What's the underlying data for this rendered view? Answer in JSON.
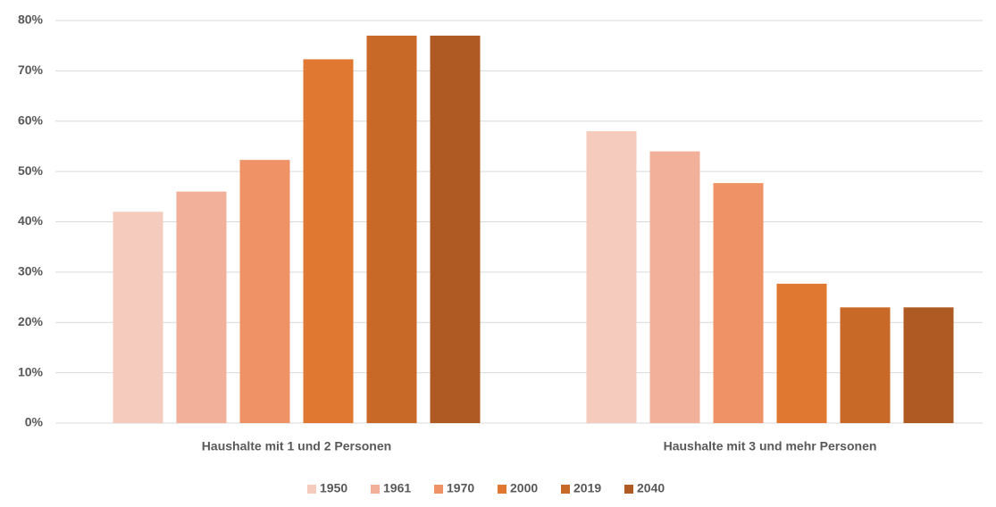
{
  "chart_data": {
    "type": "bar",
    "categories": [
      "Haushalte mit 1 und 2 Personen",
      "Haushalte mit 3 und mehr Personen"
    ],
    "series": [
      {
        "name": "1950",
        "color": "#f5cbbd",
        "values": [
          42,
          58
        ]
      },
      {
        "name": "1961",
        "color": "#f2b09a",
        "values": [
          46,
          54
        ]
      },
      {
        "name": "1970",
        "color": "#ef9266",
        "values": [
          52.3,
          47.7
        ]
      },
      {
        "name": "2000",
        "color": "#e07832",
        "values": [
          72.3,
          27.7
        ]
      },
      {
        "name": "2019",
        "color": "#c86928",
        "values": [
          77,
          23
        ]
      },
      {
        "name": "2040",
        "color": "#ae5a22",
        "values": [
          77,
          23
        ]
      }
    ],
    "ylim": [
      0,
      80
    ],
    "yticks": [
      {
        "value": 0,
        "label": "0%"
      },
      {
        "value": 10,
        "label": "10%"
      },
      {
        "value": 20,
        "label": "20%"
      },
      {
        "value": 30,
        "label": "30%"
      },
      {
        "value": 40,
        "label": "40%"
      },
      {
        "value": 50,
        "label": "50%"
      },
      {
        "value": 60,
        "label": "60%"
      },
      {
        "value": 70,
        "label": "70%"
      },
      {
        "value": 80,
        "label": "80%"
      }
    ],
    "grid": true,
    "legend": "bottom"
  }
}
